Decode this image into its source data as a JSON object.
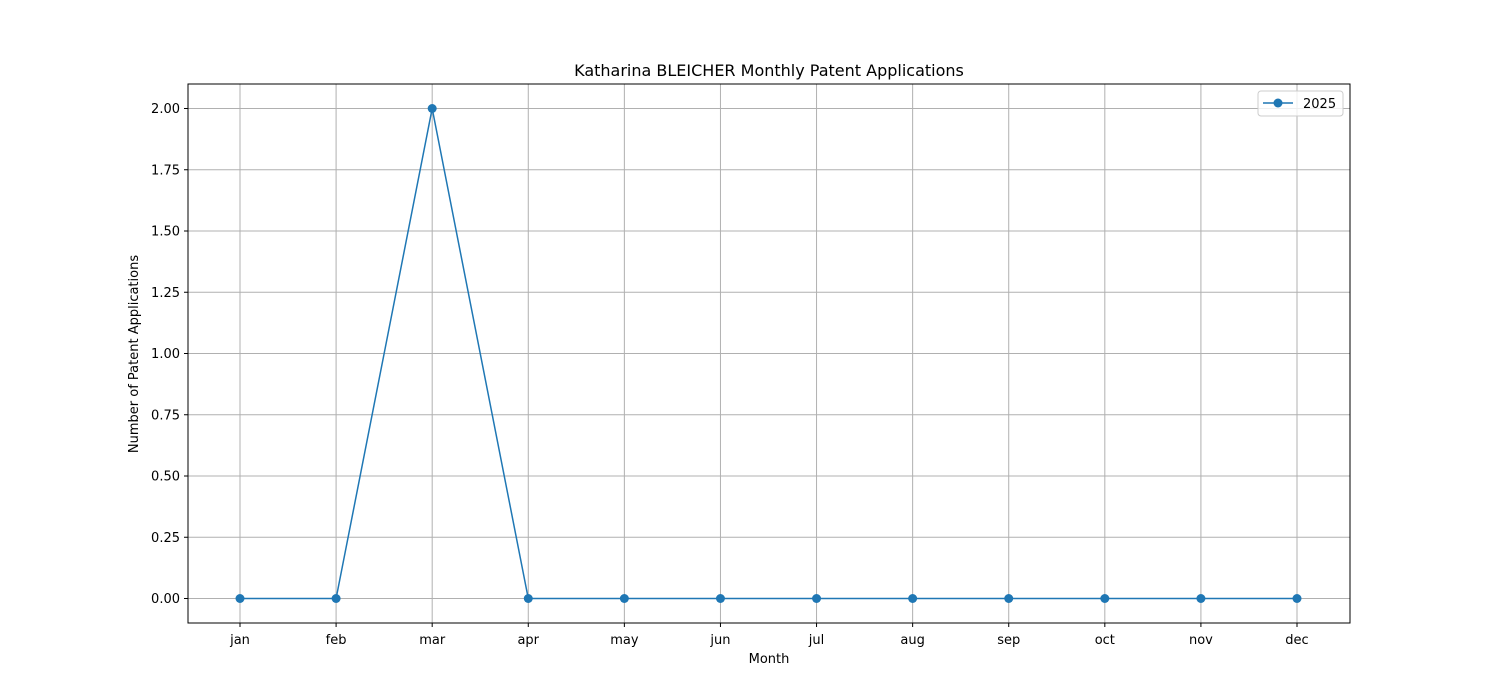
{
  "chart_data": {
    "type": "line",
    "title": "Katharina BLEICHER Monthly Patent Applications",
    "xlabel": "Month",
    "ylabel": "Number of Patent Applications",
    "categories": [
      "jan",
      "feb",
      "mar",
      "apr",
      "may",
      "jun",
      "jul",
      "aug",
      "sep",
      "oct",
      "nov",
      "dec"
    ],
    "series": [
      {
        "name": "2025",
        "color": "#1f77b4",
        "marker": "circle",
        "values": [
          0,
          0,
          2,
          0,
          0,
          0,
          0,
          0,
          0,
          0,
          0,
          0
        ]
      }
    ],
    "ylim": [
      -0.1,
      2.1
    ],
    "yticks": [
      0.0,
      0.25,
      0.5,
      0.75,
      1.0,
      1.25,
      1.5,
      1.75,
      2.0
    ],
    "ytick_labels": [
      "0.00",
      "0.25",
      "0.50",
      "0.75",
      "1.00",
      "1.25",
      "1.50",
      "1.75",
      "2.00"
    ],
    "grid": true,
    "legend_position": "top-right"
  }
}
